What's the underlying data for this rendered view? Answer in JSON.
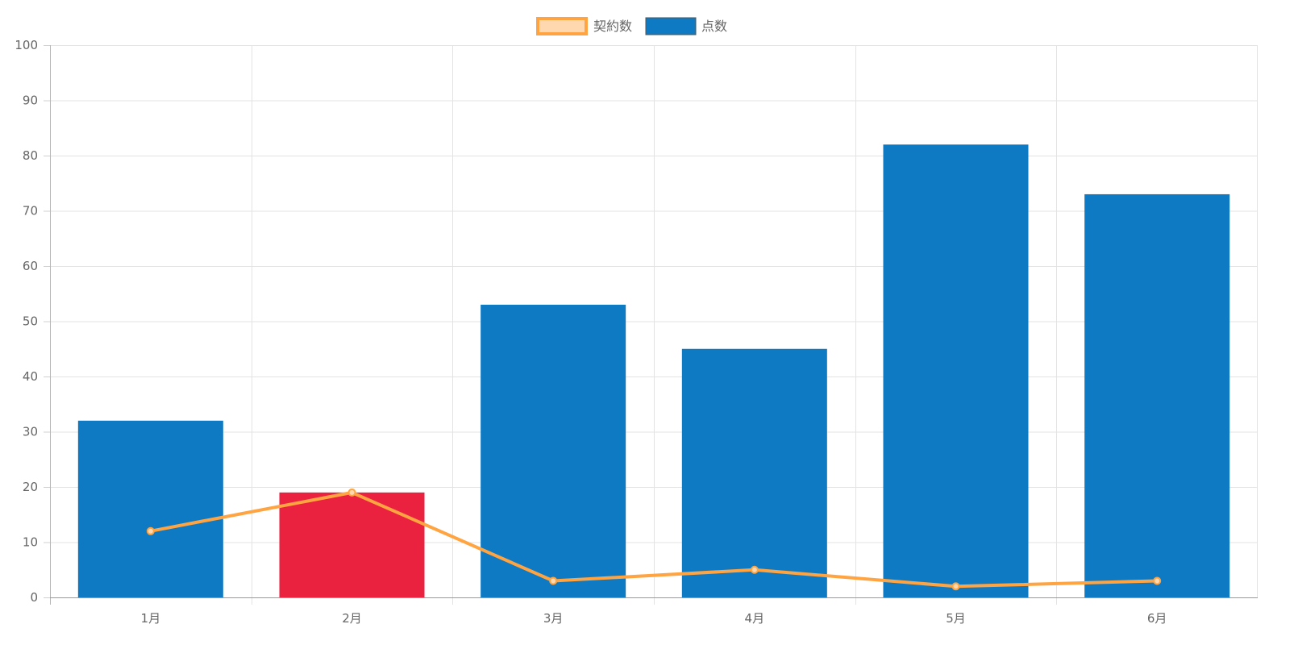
{
  "chart_data": {
    "type": "bar",
    "categories": [
      "1月",
      "2月",
      "3月",
      "4月",
      "5月",
      "6月"
    ],
    "ylim": [
      0,
      100
    ],
    "yticks": [
      0,
      10,
      20,
      30,
      40,
      50,
      60,
      70,
      80,
      90,
      100
    ],
    "grid": true,
    "legend_position": "top",
    "title": "",
    "xlabel": "",
    "ylabel": "",
    "series": [
      {
        "name": "契約数",
        "type": "line",
        "values": [
          12,
          19,
          3,
          5,
          2,
          3
        ],
        "color": "#ffa441",
        "fill_color": "#ffd8b0"
      },
      {
        "name": "点数",
        "type": "bar",
        "values": [
          32,
          19,
          53,
          45,
          82,
          73
        ],
        "color": "#0f7ac4",
        "highlight_color": "#eb2140",
        "highlight_index": 1
      }
    ]
  }
}
